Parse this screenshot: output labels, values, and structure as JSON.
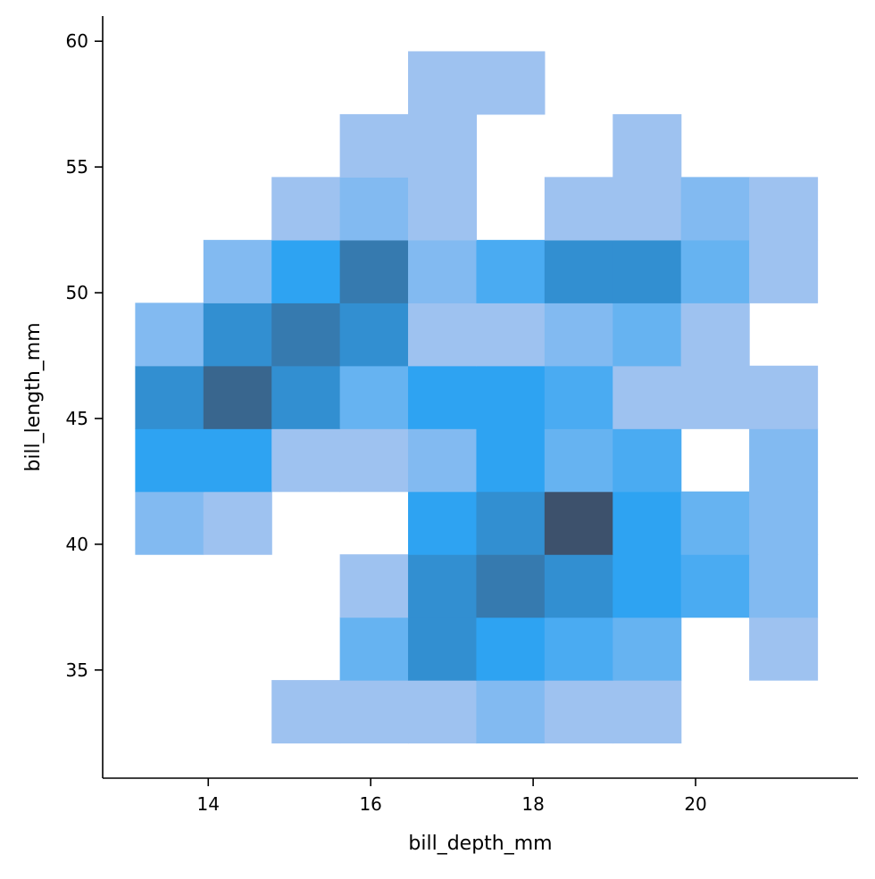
{
  "chart_data": {
    "type": "heatmap",
    "title": "",
    "xlabel": "bill_depth_mm",
    "ylabel": "bill_length_mm",
    "xlim": [
      12.7,
      22.0
    ],
    "ylim": [
      30.7,
      61.0
    ],
    "x_ticks": [
      14,
      16,
      18,
      20
    ],
    "y_ticks": [
      35,
      40,
      45,
      50,
      55,
      60
    ],
    "x_tick_labels": [
      "14",
      "16",
      "18",
      "20"
    ],
    "y_tick_labels": [
      "35",
      "40",
      "45",
      "50",
      "55",
      "60"
    ],
    "x_bin_edges": [
      13.1,
      13.94,
      14.78,
      15.62,
      16.46,
      17.3,
      18.14,
      18.98,
      19.82,
      20.66,
      21.5
    ],
    "y_bin_edges": [
      32.1,
      34.6,
      37.1,
      39.6,
      42.1,
      44.6,
      47.1,
      49.6,
      52.1,
      54.6,
      57.1,
      59.6
    ],
    "color_scale": {
      "low": "#9ec2f0",
      "mid": "#2ea3f2",
      "high": "#3d516c",
      "max_count": 9
    },
    "grid": false,
    "legend": "none",
    "counts": [
      [
        0,
        0,
        1,
        1,
        1,
        2,
        1,
        1,
        0,
        0
      ],
      [
        0,
        0,
        0,
        3,
        6,
        5,
        4,
        3,
        0,
        1
      ],
      [
        0,
        0,
        0,
        1,
        6,
        7,
        6,
        5,
        4,
        2
      ],
      [
        2,
        1,
        0,
        0,
        5,
        6,
        9,
        5,
        3,
        2
      ],
      [
        5,
        5,
        1,
        1,
        2,
        5,
        3,
        4,
        0,
        2
      ],
      [
        6,
        8,
        6,
        3,
        5,
        5,
        4,
        1,
        1,
        1
      ],
      [
        2,
        6,
        7,
        6,
        1,
        1,
        2,
        3,
        1,
        0
      ],
      [
        0,
        2,
        5,
        7,
        2,
        4,
        6,
        6,
        3,
        1
      ],
      [
        0,
        0,
        1,
        2,
        1,
        0,
        1,
        1,
        2,
        1
      ],
      [
        0,
        0,
        0,
        1,
        1,
        0,
        0,
        1,
        0,
        0
      ],
      [
        0,
        0,
        0,
        0,
        1,
        1,
        0,
        0,
        0,
        0
      ]
    ]
  }
}
